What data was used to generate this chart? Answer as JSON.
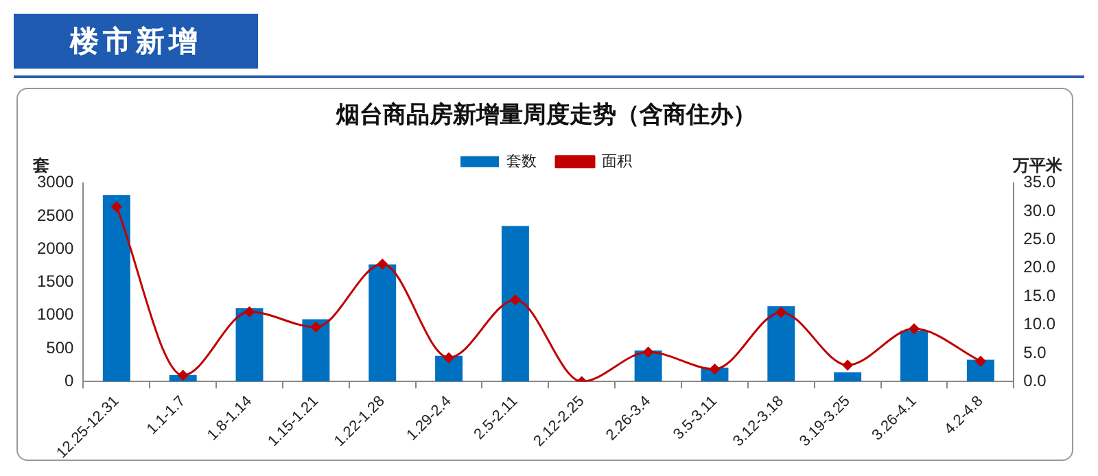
{
  "chart_data": {
    "type": "bar",
    "title": "烟台商品房新增量周度走势（含商住办）",
    "annotations": [
      "楼市新增"
    ],
    "ylabel": "套",
    "y2label": "万平米",
    "categories": [
      "12.25-12.31",
      "1.1-1.7",
      "1.8-1.14",
      "1.15-1.21",
      "1.22-1.28",
      "1.29-2.4",
      "2.5-2.11",
      "2.12-2.25",
      "2.26-3.4",
      "3.5-3.11",
      "3.12-3.18",
      "3.19-3.25",
      "3.26-4.1",
      "4.2-4.8"
    ],
    "series": [
      {
        "name": "套数",
        "color": "#0070c0",
        "values": [
          2820,
          100,
          1110,
          940,
          1770,
          390,
          2350,
          0,
          470,
          210,
          1140,
          140,
          770,
          330
        ]
      },
      {
        "name": "面积",
        "type": "line",
        "axis": "y2",
        "color": "#c00000",
        "marker": "diamond",
        "values": [
          30.8,
          1.1,
          12.3,
          9.6,
          20.7,
          4.2,
          14.4,
          0,
          5.2,
          2.2,
          12.2,
          2.9,
          9.3,
          3.6
        ]
      }
    ],
    "ylim": [
      0,
      3000
    ],
    "yticks": [
      0,
      500,
      1000,
      1500,
      2000,
      2500,
      3000
    ],
    "y2lim": [
      0,
      35
    ],
    "y2ticks": [
      {
        "value": 0,
        "label": "0.0"
      },
      {
        "value": 5,
        "label": "5.0"
      },
      {
        "value": 10,
        "label": "10.0"
      },
      {
        "value": 15,
        "label": "15.0"
      },
      {
        "value": 20,
        "label": "20.0"
      },
      {
        "value": 25,
        "label": "25.0"
      },
      {
        "value": 30,
        "label": "30.0"
      },
      {
        "value": 35,
        "label": "35.0"
      }
    ],
    "legend": "top",
    "grid": false
  }
}
